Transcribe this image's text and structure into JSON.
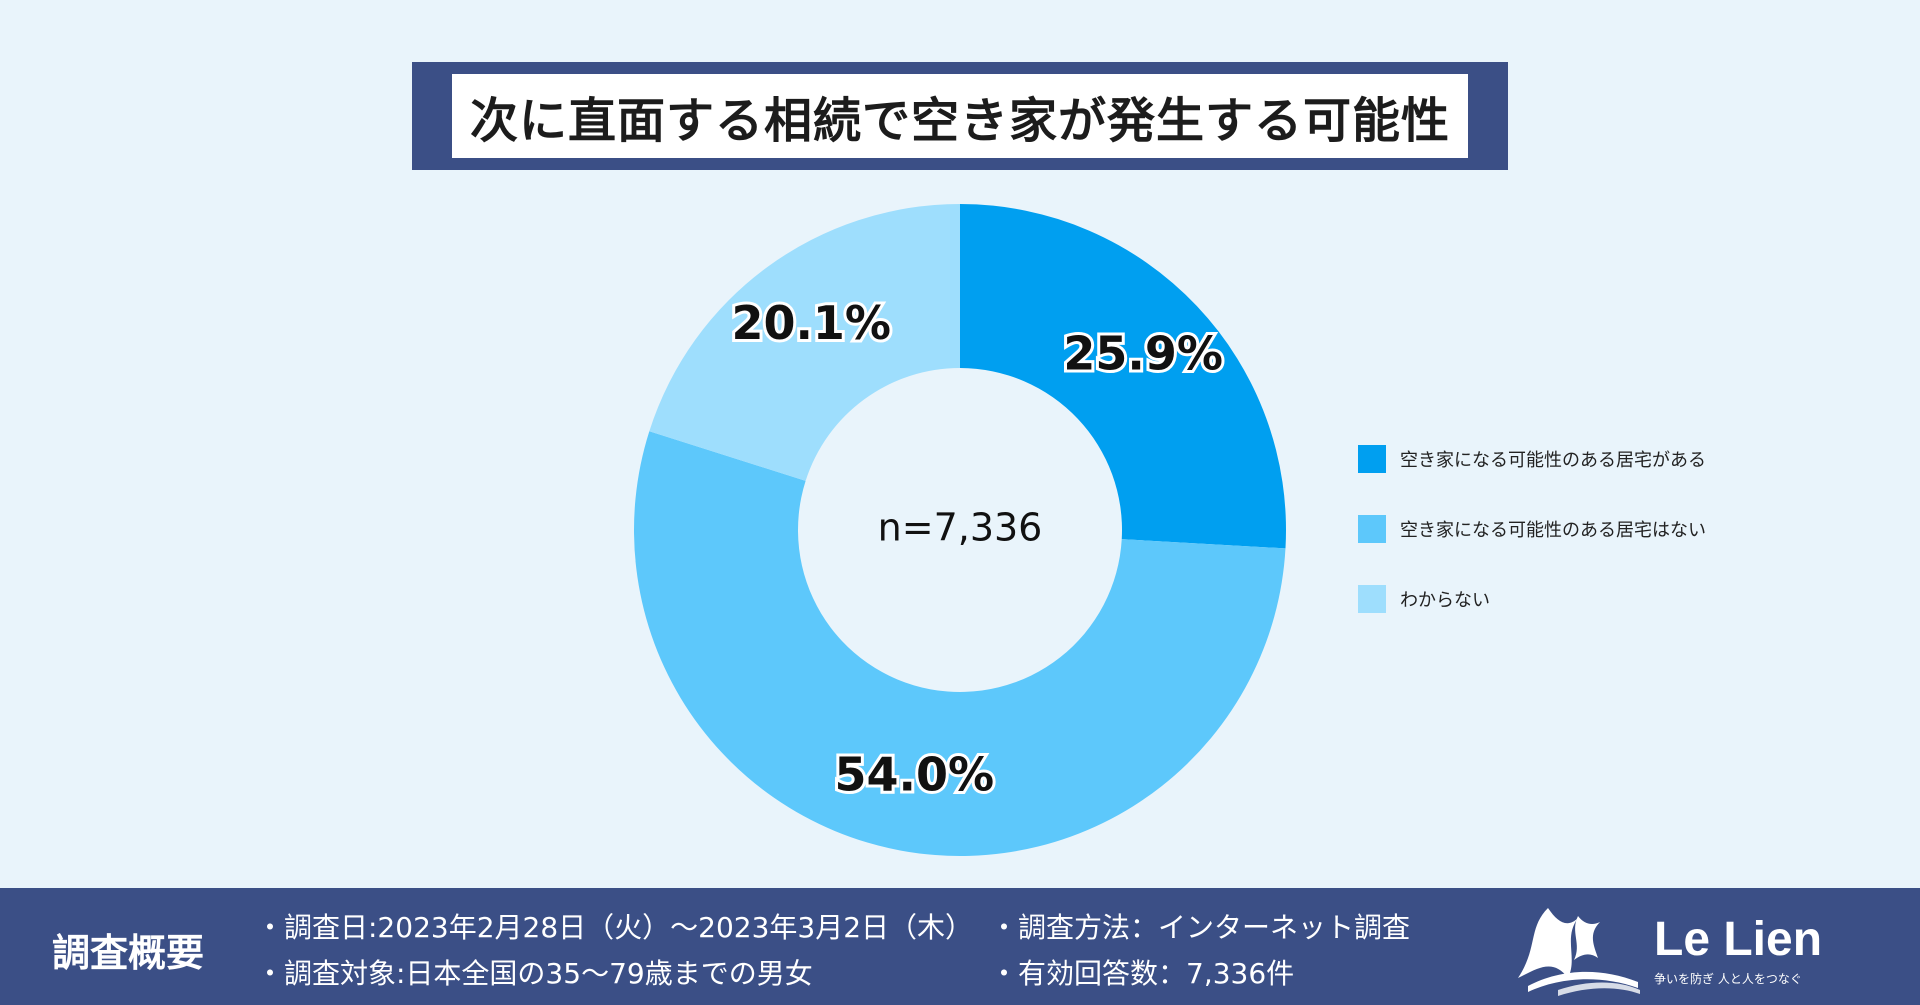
{
  "colors": {
    "series": [
      "#009ff0",
      "#5dc8fb",
      "#9edefd"
    ],
    "navy": "#3b4f86",
    "background": "#e9f4fb"
  },
  "chart_data": {
    "type": "pie",
    "title": "次に直面する相続で空き家が発生する可能性",
    "center_label": "n=7,336",
    "categories": [
      "空き家になる可能性のある居宅がある",
      "空き家になる可能性のある居宅はない",
      "わからない"
    ],
    "values": [
      25.9,
      54.0,
      20.1
    ],
    "value_labels": [
      "25.9%",
      "54.0%",
      "20.1%"
    ],
    "legend_position": "right"
  },
  "footer": {
    "heading": "調査概要",
    "line1": "・調査日:2023年2月28日（火）～2023年3月2日（木）",
    "line2": "・調査対象:日本全国の35～79歳までの男女",
    "line3": "・調査方法：インターネット調査",
    "line4": "・有効回答数：7,336件"
  },
  "logo": {
    "name": "Le Lien",
    "tagline": "争いを防ぎ 人と人をつなぐ",
    "icon": "wave-logo-icon"
  }
}
